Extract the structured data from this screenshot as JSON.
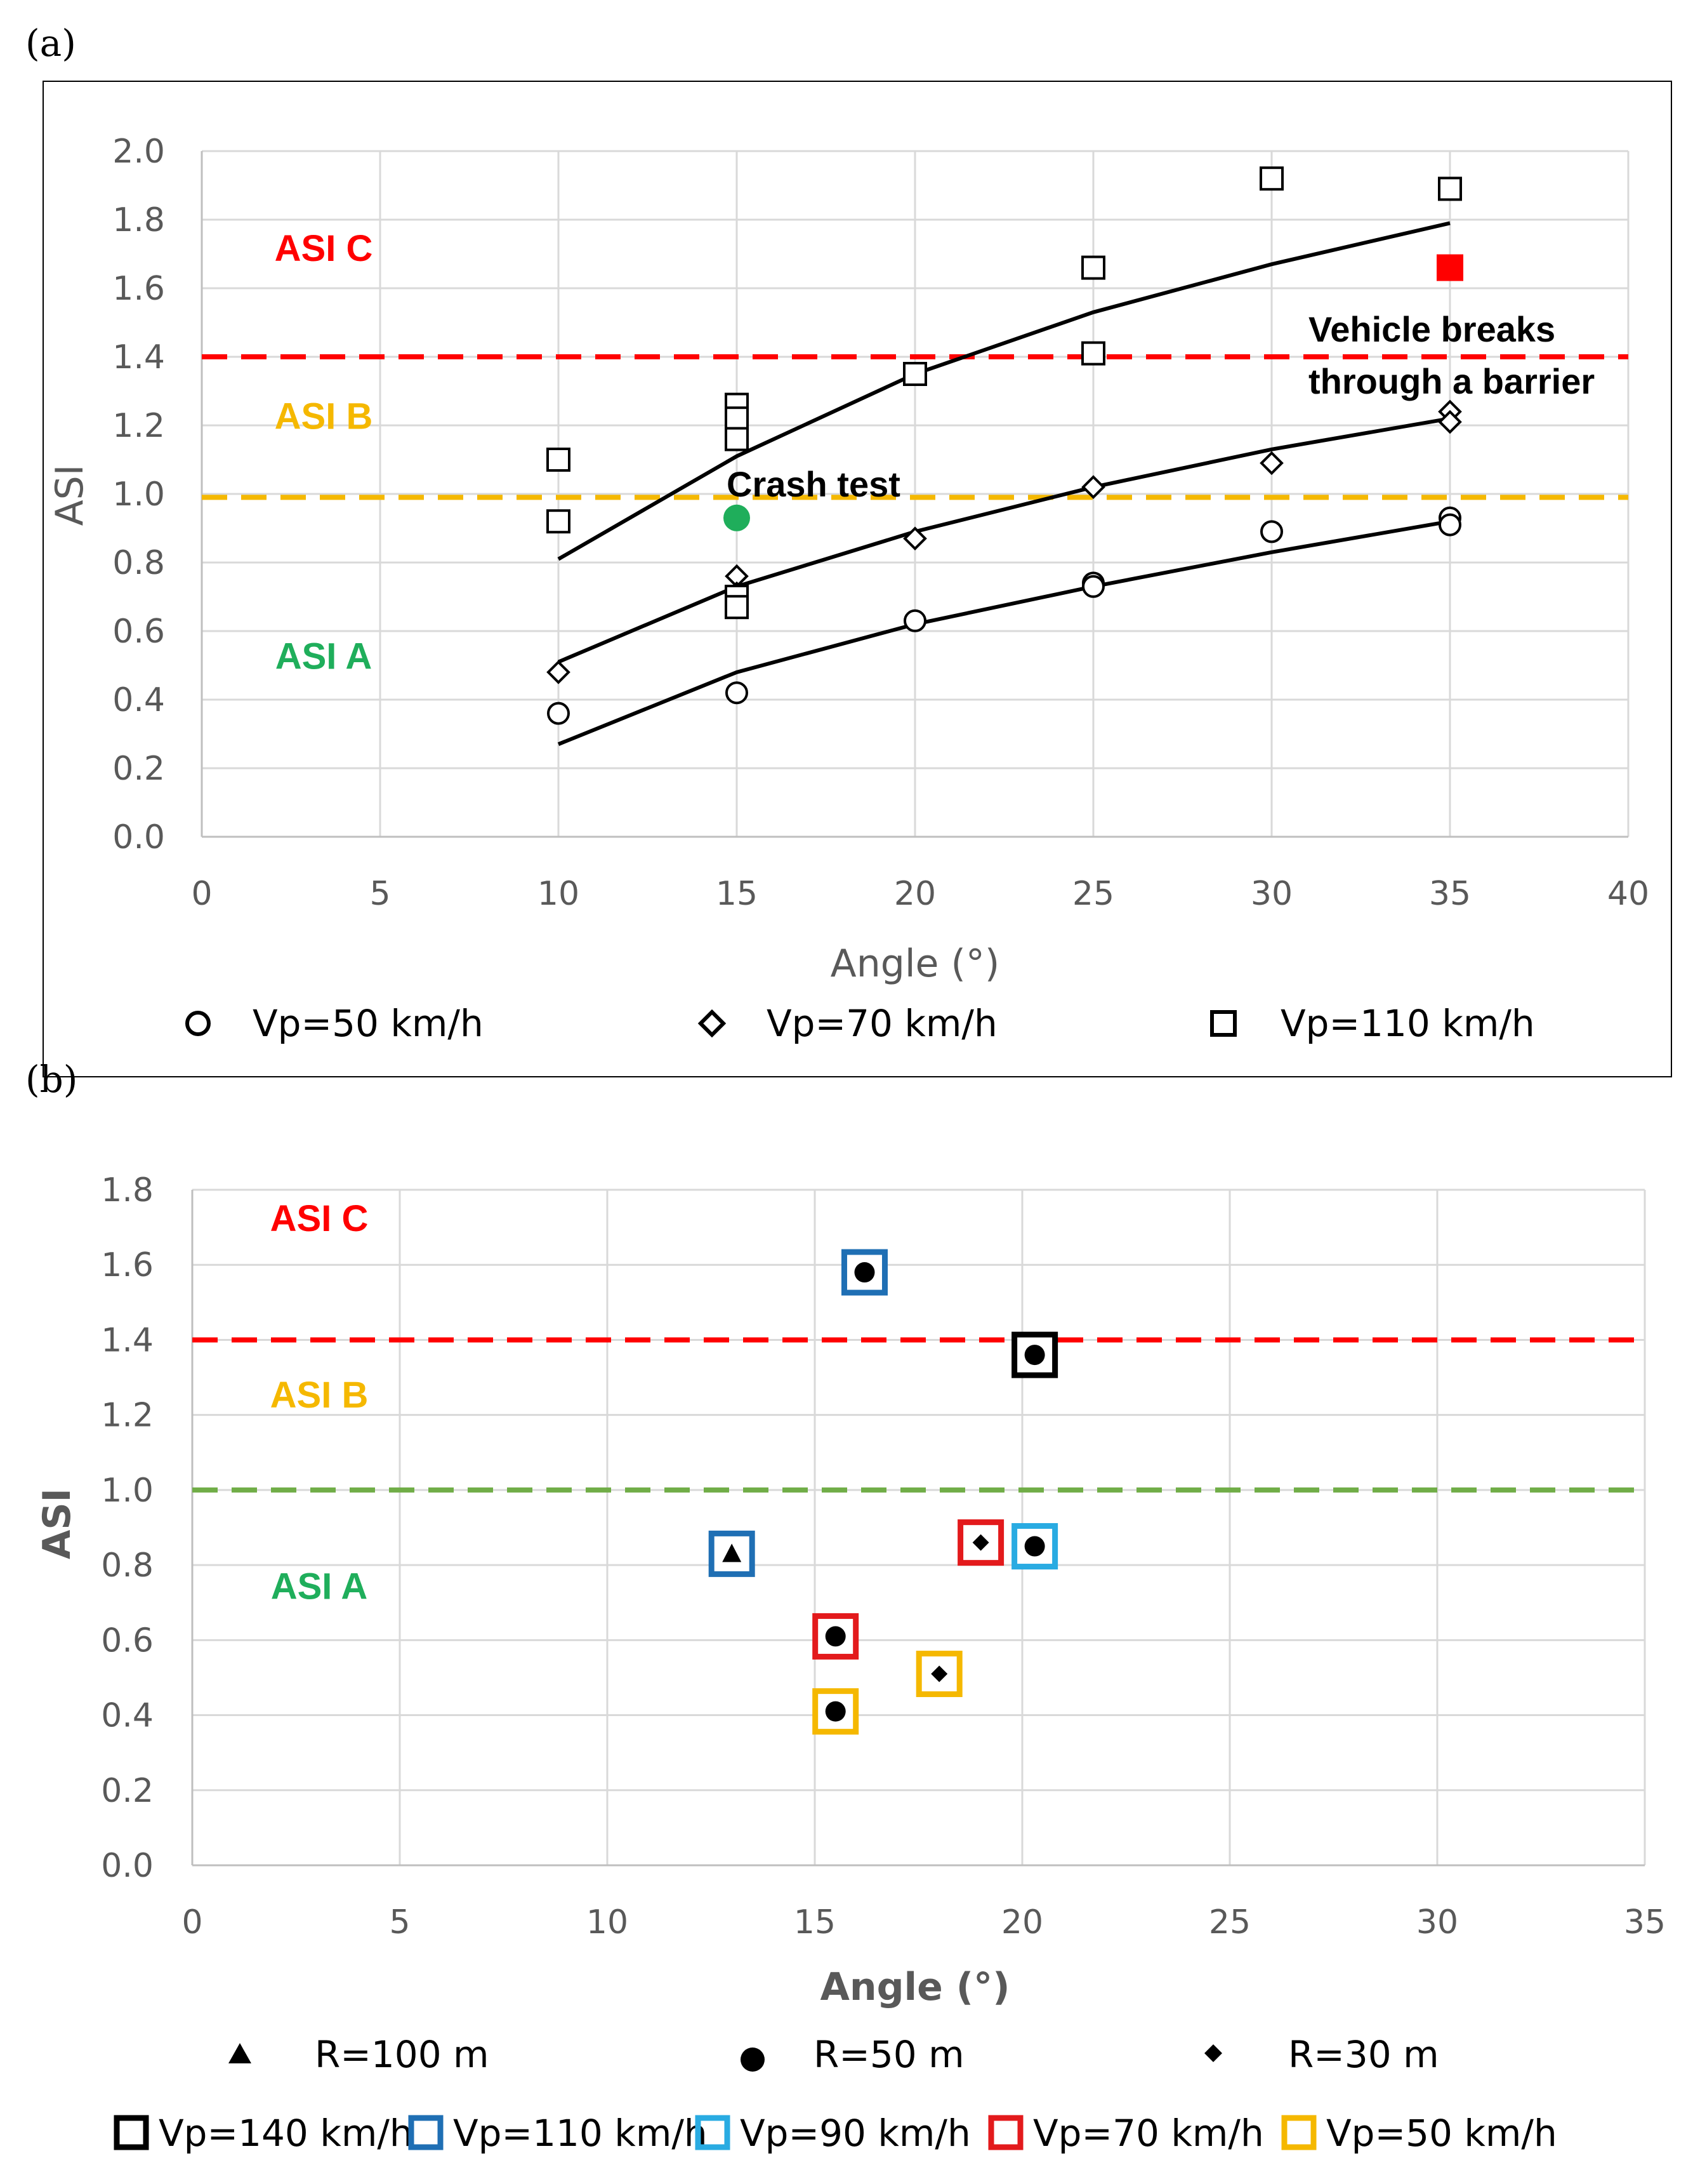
{
  "chart_data": [
    {
      "panel_label": "(a)",
      "type": "scatter",
      "title": "",
      "xlabel": "Angle (°)",
      "ylabel": "ASI",
      "xlim": [
        0,
        40
      ],
      "ylim": [
        0,
        2.0
      ],
      "xticks": [
        0,
        5,
        10,
        15,
        20,
        25,
        30,
        35,
        40
      ],
      "yticks": [
        "0.0",
        "0.2",
        "0.4",
        "0.6",
        "0.8",
        "1.0",
        "1.2",
        "1.4",
        "1.6",
        "1.8",
        "2.0"
      ],
      "grid": true,
      "series": [
        {
          "name": "Vp=50 km/h",
          "marker": "circle",
          "points": [
            [
              10,
              0.36
            ],
            [
              15,
              0.42
            ],
            [
              20,
              0.63
            ],
            [
              25,
              0.74
            ],
            [
              25,
              0.73
            ],
            [
              30,
              0.89
            ],
            [
              35,
              0.93
            ],
            [
              35,
              0.91
            ]
          ],
          "trend": [
            [
              10,
              0.27
            ],
            [
              15,
              0.48
            ],
            [
              20,
              0.62
            ],
            [
              25,
              0.73
            ],
            [
              30,
              0.83
            ],
            [
              35,
              0.92
            ]
          ]
        },
        {
          "name": "Vp=70 km/h",
          "marker": "diamond",
          "points": [
            [
              10,
              0.48
            ],
            [
              15,
              0.76
            ],
            [
              15,
              0.71
            ],
            [
              20,
              0.87
            ],
            [
              25,
              1.02
            ],
            [
              30,
              1.09
            ],
            [
              35,
              1.24
            ],
            [
              35,
              1.21
            ]
          ],
          "trend": [
            [
              10,
              0.51
            ],
            [
              15,
              0.73
            ],
            [
              20,
              0.89
            ],
            [
              25,
              1.02
            ],
            [
              30,
              1.13
            ],
            [
              35,
              1.22
            ]
          ]
        },
        {
          "name": "Vp=110 km/h",
          "marker": "square",
          "points": [
            [
              10,
              1.1
            ],
            [
              10,
              0.92
            ],
            [
              15,
              1.26
            ],
            [
              15,
              1.22
            ],
            [
              15,
              1.16
            ],
            [
              15,
              0.7
            ],
            [
              15,
              0.67
            ],
            [
              20,
              1.35
            ],
            [
              25,
              1.66
            ],
            [
              25,
              1.41
            ],
            [
              30,
              1.92
            ],
            [
              35,
              1.89
            ]
          ],
          "trend": [
            [
              10,
              0.81
            ],
            [
              15,
              1.11
            ],
            [
              20,
              1.35
            ],
            [
              25,
              1.53
            ],
            [
              30,
              1.67
            ],
            [
              35,
              1.79
            ]
          ]
        }
      ],
      "special_points": [
        {
          "label": "Crash test",
          "x": 15,
          "y": 0.93,
          "color": "#1fae5b",
          "marker": "circle-filled"
        },
        {
          "label": "Vehicle breaks through a barrier",
          "x": 35,
          "y": 1.66,
          "color": "#ff0000",
          "marker": "square-filled"
        }
      ],
      "thresholds": [
        {
          "y": 1.4,
          "color": "#ff0000"
        },
        {
          "y": 0.99,
          "color": "#f5b800"
        }
      ],
      "zones": [
        {
          "label": "ASI C",
          "color": "#ff0000",
          "y": 1.68
        },
        {
          "label": "ASI B",
          "color": "#f5b800",
          "y": 1.19
        },
        {
          "label": "ASI A",
          "color": "#1fae5b",
          "y": 0.49
        }
      ],
      "annotations": {
        "crash_test": "Crash test",
        "vehicle_line1": "Vehicle breaks",
        "vehicle_line2": "through a barrier"
      },
      "legend": [
        "Vp=50 km/h",
        "Vp=70 km/h",
        "Vp=110 km/h"
      ],
      "legend_position": "bottom"
    },
    {
      "panel_label": "(b)",
      "type": "scatter",
      "title": "",
      "xlabel": "Angle (°)",
      "ylabel": "ASI",
      "xlim": [
        0,
        35
      ],
      "ylim": [
        0,
        1.8
      ],
      "xticks": [
        0,
        5,
        10,
        15,
        20,
        25,
        30,
        35
      ],
      "yticks": [
        "0.0",
        "0.2",
        "0.4",
        "0.6",
        "0.8",
        "1.0",
        "1.2",
        "1.4",
        "1.6",
        "1.8"
      ],
      "grid": true,
      "points": [
        {
          "x": 16.2,
          "y": 1.58,
          "shape": "circle",
          "frame": "Vp=110 km/h"
        },
        {
          "x": 20.3,
          "y": 1.36,
          "shape": "circle",
          "frame": "Vp=140 km/h"
        },
        {
          "x": 13.0,
          "y": 0.83,
          "shape": "triangle",
          "frame": "Vp=110 km/h"
        },
        {
          "x": 19.0,
          "y": 0.86,
          "shape": "diamond",
          "frame": "Vp=70 km/h"
        },
        {
          "x": 20.3,
          "y": 0.85,
          "shape": "circle",
          "frame": "Vp=90 km/h"
        },
        {
          "x": 15.5,
          "y": 0.61,
          "shape": "circle",
          "frame": "Vp=70 km/h"
        },
        {
          "x": 18.0,
          "y": 0.51,
          "shape": "diamond",
          "frame": "Vp=50 km/h"
        },
        {
          "x": 15.5,
          "y": 0.41,
          "shape": "circle",
          "frame": "Vp=50 km/h"
        }
      ],
      "thresholds": [
        {
          "y": 1.4,
          "color": "#ff0000"
        },
        {
          "y": 1.0,
          "color": "#70ad47"
        }
      ],
      "zones": [
        {
          "label": "ASI C",
          "color": "#ff0000",
          "y": 1.69
        },
        {
          "label": "ASI B",
          "color": "#f5b800",
          "y": 1.22
        },
        {
          "label": "ASI A",
          "color": "#1fae5b",
          "y": 0.71
        }
      ],
      "legend_shapes": [
        {
          "label": "R=100 m",
          "shape": "triangle"
        },
        {
          "label": "R=50 m",
          "shape": "circle"
        },
        {
          "label": "R=30 m",
          "shape": "diamond"
        }
      ],
      "legend_frames": [
        {
          "label": "Vp=140 km/h",
          "color": "#000000"
        },
        {
          "label": "Vp=110 km/h",
          "color": "#1f6fb4"
        },
        {
          "label": "Vp=90 km/h",
          "color": "#29abe2"
        },
        {
          "label": "Vp=70 km/h",
          "color": "#e31a1c"
        },
        {
          "label": "Vp=50 km/h",
          "color": "#f5b800"
        }
      ],
      "legend_position": "bottom"
    }
  ]
}
